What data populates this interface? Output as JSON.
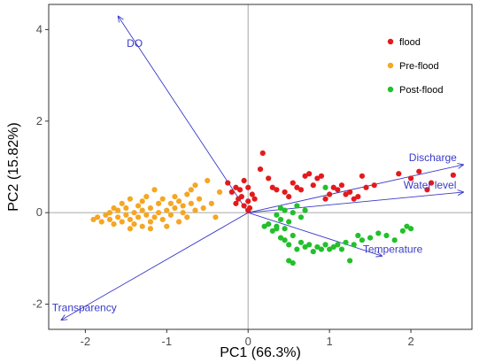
{
  "chart_data": {
    "type": "scatter",
    "subtype": "pca-biplot",
    "title": "",
    "xlabel": "PC1 (66.3%)",
    "ylabel": "PC2 (15.82%)",
    "xlim": [
      -2.45,
      2.75
    ],
    "ylim": [
      -2.55,
      4.55
    ],
    "xticks": [
      -2,
      -1,
      0,
      1,
      2
    ],
    "yticks": [
      -2,
      0,
      2,
      4
    ],
    "grid": false,
    "zero_lines": true,
    "legend_position": "top-right",
    "colors": {
      "vector": "#3a3ac8",
      "zero_line": "#b3b3b3",
      "frame": "#333333"
    },
    "series": [
      {
        "name": "flood",
        "color": "#e31a1c",
        "points": [
          [
            -0.25,
            0.65
          ],
          [
            -0.2,
            0.45
          ],
          [
            -0.15,
            0.55
          ],
          [
            -0.1,
            0.5
          ],
          [
            -0.05,
            0.7
          ],
          [
            0.0,
            0.55
          ],
          [
            -0.08,
            0.35
          ],
          [
            -0.12,
            0.3
          ],
          [
            -0.05,
            0.15
          ],
          [
            0.0,
            0.25
          ],
          [
            0.05,
            0.4
          ],
          [
            0.02,
            0.1
          ],
          [
            -0.15,
            0.2
          ],
          [
            0.0,
            0.05
          ],
          [
            0.08,
            0.3
          ],
          [
            0.18,
            1.3
          ],
          [
            0.15,
            0.95
          ],
          [
            0.25,
            0.75
          ],
          [
            0.3,
            0.55
          ],
          [
            0.35,
            0.5
          ],
          [
            0.45,
            0.45
          ],
          [
            0.5,
            0.35
          ],
          [
            0.55,
            0.65
          ],
          [
            0.6,
            0.55
          ],
          [
            0.65,
            0.5
          ],
          [
            0.7,
            0.8
          ],
          [
            0.75,
            0.85
          ],
          [
            0.8,
            0.6
          ],
          [
            0.85,
            0.75
          ],
          [
            0.9,
            0.8
          ],
          [
            0.95,
            0.3
          ],
          [
            1.0,
            0.4
          ],
          [
            1.05,
            0.55
          ],
          [
            1.1,
            0.5
          ],
          [
            1.15,
            0.6
          ],
          [
            1.2,
            0.4
          ],
          [
            1.25,
            0.45
          ],
          [
            1.3,
            0.3
          ],
          [
            1.35,
            0.35
          ],
          [
            1.4,
            0.8
          ],
          [
            1.45,
            0.55
          ],
          [
            1.55,
            0.6
          ],
          [
            1.85,
            0.85
          ],
          [
            2.0,
            0.75
          ],
          [
            2.1,
            0.9
          ],
          [
            2.2,
            0.5
          ],
          [
            2.25,
            0.65
          ],
          [
            2.52,
            0.82
          ]
        ]
      },
      {
        "name": "Pre-flood",
        "color": "#f5a623",
        "points": [
          [
            -1.9,
            -0.15
          ],
          [
            -1.85,
            -0.1
          ],
          [
            -1.8,
            -0.2
          ],
          [
            -1.75,
            -0.05
          ],
          [
            -1.7,
            -0.15
          ],
          [
            -1.7,
            0.0
          ],
          [
            -1.65,
            -0.25
          ],
          [
            -1.6,
            -0.1
          ],
          [
            -1.6,
            0.05
          ],
          [
            -1.55,
            -0.2
          ],
          [
            -1.55,
            0.2
          ],
          [
            -1.5,
            -0.05
          ],
          [
            -1.5,
            0.1
          ],
          [
            -1.45,
            -0.15
          ],
          [
            -1.45,
            0.3
          ],
          [
            -1.4,
            0.0
          ],
          [
            -1.4,
            -0.25
          ],
          [
            -1.35,
            0.15
          ],
          [
            -1.35,
            -0.1
          ],
          [
            -1.3,
            0.05
          ],
          [
            -1.3,
            0.25
          ],
          [
            -1.3,
            -0.3
          ],
          [
            -1.25,
            -0.05
          ],
          [
            -1.25,
            0.35
          ],
          [
            -1.2,
            0.1
          ],
          [
            -1.2,
            -0.2
          ],
          [
            -1.15,
            0.5
          ],
          [
            -1.15,
            -0.1
          ],
          [
            -1.1,
            0.2
          ],
          [
            -1.1,
            0.0
          ],
          [
            -1.05,
            -0.15
          ],
          [
            -1.05,
            0.3
          ],
          [
            -1.0,
            0.05
          ],
          [
            -1.0,
            -0.3
          ],
          [
            -0.95,
            0.2
          ],
          [
            -0.95,
            -0.05
          ],
          [
            -0.9,
            0.35
          ],
          [
            -0.9,
            0.1
          ],
          [
            -0.85,
            -0.2
          ],
          [
            -0.85,
            0.25
          ],
          [
            -0.8,
            0.0
          ],
          [
            -0.8,
            0.15
          ],
          [
            -0.75,
            0.4
          ],
          [
            -0.75,
            -0.1
          ],
          [
            -0.7,
            0.5
          ],
          [
            -0.7,
            0.2
          ],
          [
            -0.65,
            0.6
          ],
          [
            -0.65,
            0.05
          ],
          [
            -0.6,
            0.3
          ],
          [
            -0.55,
            0.1
          ],
          [
            -0.5,
            0.7
          ],
          [
            -0.45,
            0.2
          ],
          [
            -0.4,
            -0.1
          ],
          [
            -0.35,
            0.45
          ],
          [
            -1.2,
            -0.35
          ],
          [
            -1.45,
            -0.35
          ],
          [
            -1.65,
            0.1
          ]
        ]
      },
      {
        "name": "Post-flood",
        "color": "#22c02a",
        "points": [
          [
            0.2,
            -0.3
          ],
          [
            0.25,
            -0.25
          ],
          [
            0.3,
            -0.4
          ],
          [
            0.35,
            -0.35
          ],
          [
            0.4,
            -0.55
          ],
          [
            0.45,
            -0.6
          ],
          [
            0.5,
            -0.7
          ],
          [
            0.55,
            -0.5
          ],
          [
            0.6,
            -0.8
          ],
          [
            0.65,
            -0.65
          ],
          [
            0.7,
            -0.75
          ],
          [
            0.75,
            -0.7
          ],
          [
            0.8,
            -0.85
          ],
          [
            0.85,
            -0.75
          ],
          [
            0.9,
            -0.8
          ],
          [
            0.95,
            -0.7
          ],
          [
            1.0,
            -0.8
          ],
          [
            1.05,
            -0.75
          ],
          [
            1.1,
            -0.7
          ],
          [
            1.15,
            -0.8
          ],
          [
            1.2,
            -0.65
          ],
          [
            1.25,
            -1.05
          ],
          [
            1.3,
            -0.7
          ],
          [
            1.35,
            -0.5
          ],
          [
            1.4,
            -0.6
          ],
          [
            1.5,
            -0.55
          ],
          [
            1.6,
            -0.45
          ],
          [
            1.7,
            -0.5
          ],
          [
            1.8,
            -0.6
          ],
          [
            1.9,
            -0.4
          ],
          [
            1.95,
            -0.3
          ],
          [
            2.0,
            -0.35
          ],
          [
            0.35,
            -0.05
          ],
          [
            0.4,
            0.1
          ],
          [
            0.45,
            0.05
          ],
          [
            0.5,
            -0.2
          ],
          [
            0.55,
            0.0
          ],
          [
            0.6,
            0.15
          ],
          [
            0.65,
            -0.1
          ],
          [
            0.7,
            0.05
          ],
          [
            0.5,
            -1.05
          ],
          [
            0.55,
            -1.1
          ],
          [
            0.45,
            -0.35
          ],
          [
            0.4,
            -0.15
          ],
          [
            0.95,
            0.55
          ],
          [
            0.35,
            -0.3
          ]
        ]
      }
    ],
    "vectors": [
      {
        "label": "DO",
        "x": -1.6,
        "y": 4.3
      },
      {
        "label": "Discharge",
        "x": 2.65,
        "y": 1.05
      },
      {
        "label": "Water level",
        "x": 2.65,
        "y": 0.45
      },
      {
        "label": "Temperature",
        "x": 1.65,
        "y": -0.95
      },
      {
        "label": "Transparency",
        "x": -2.3,
        "y": -2.35
      }
    ]
  }
}
